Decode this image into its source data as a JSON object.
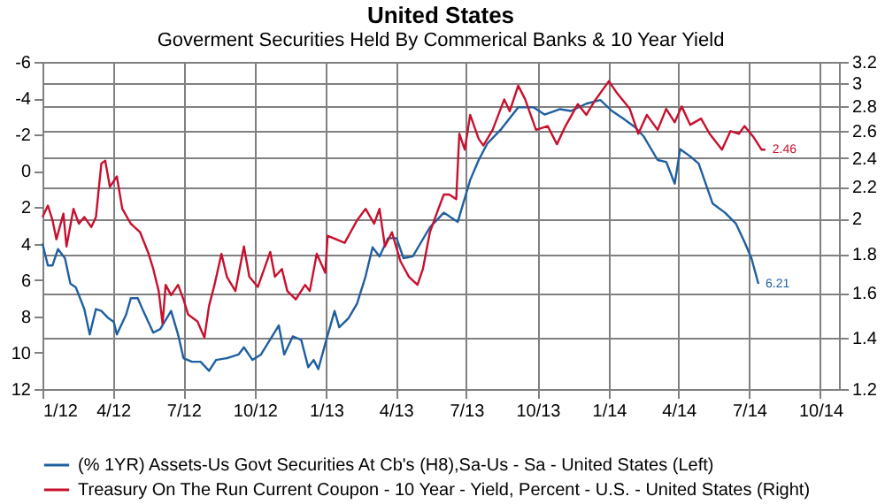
{
  "chart_data": {
    "type": "line",
    "title": "United States",
    "subtitle": "Goverment Securities Held By Commerical Banks & 10 Year Yield",
    "xlim": [
      "2012-01-01",
      "2014-10-25"
    ],
    "xticks": [
      {
        "value": "2012-01-01",
        "label": "1/12"
      },
      {
        "value": "2012-04-01",
        "label": "4/12"
      },
      {
        "value": "2012-07-01",
        "label": "7/12"
      },
      {
        "value": "2012-10-01",
        "label": "10/12"
      },
      {
        "value": "2013-01-01",
        "label": "1/13"
      },
      {
        "value": "2013-04-01",
        "label": "4/13"
      },
      {
        "value": "2013-07-01",
        "label": "7/13"
      },
      {
        "value": "2013-10-01",
        "label": "10/13"
      },
      {
        "value": "2014-01-01",
        "label": "1/14"
      },
      {
        "value": "2014-04-01",
        "label": "4/14"
      },
      {
        "value": "2014-07-01",
        "label": "7/14"
      },
      {
        "value": "2014-10-01",
        "label": "10/14"
      }
    ],
    "ylim": [
      12,
      -6
    ],
    "yticks": [
      -6,
      -4,
      -2,
      0,
      2,
      4,
      6,
      8,
      10,
      12
    ],
    "y2lim": [
      1.2,
      3.2
    ],
    "y2ticks": [
      1.2,
      1.4,
      1.6,
      1.8,
      2,
      2.2,
      2.4,
      2.6,
      2.8,
      3,
      3.2
    ],
    "log": "y2",
    "grid": true,
    "legend": "bottom",
    "line_style": "solid",
    "series": [
      {
        "name": "(% 1YR) Assets-Us Govt Securities At Cb's (H8),Sa-Us - Sa - United States  (Left)",
        "color": "#1f5fa0",
        "x": [
          "2012-01-01",
          "2012-01-08",
          "2012-01-14",
          "2012-01-21",
          "2012-01-30",
          "2012-02-06",
          "2012-02-13",
          "2012-02-24",
          "2012-03-02",
          "2012-03-10",
          "2012-03-17",
          "2012-03-26",
          "2012-04-02",
          "2012-04-06",
          "2012-04-18",
          "2012-04-24",
          "2012-05-03",
          "2012-05-10",
          "2012-05-23",
          "2012-06-01",
          "2012-06-15",
          "2012-06-24",
          "2012-07-01",
          "2012-07-12",
          "2012-07-23",
          "2012-08-03",
          "2012-08-12",
          "2012-08-26",
          "2012-09-10",
          "2012-09-17",
          "2012-09-28",
          "2012-10-09",
          "2012-11-01",
          "2012-11-08",
          "2012-11-19",
          "2012-11-30",
          "2012-12-09",
          "2012-12-16",
          "2012-12-22",
          "2012-12-31",
          "2013-01-12",
          "2013-01-18",
          "2013-01-30",
          "2013-02-10",
          "2013-02-21",
          "2013-03-02",
          "2013-03-11",
          "2013-03-22",
          "2013-04-02",
          "2013-04-11",
          "2013-04-23",
          "2013-05-04",
          "2013-05-15",
          "2013-06-02",
          "2013-06-20",
          "2013-07-06",
          "2013-07-17",
          "2013-07-28",
          "2013-08-15",
          "2013-09-06",
          "2013-09-26",
          "2013-10-10",
          "2013-10-30",
          "2013-11-13",
          "2013-12-03",
          "2013-12-21",
          "2014-01-05",
          "2014-01-19",
          "2014-02-04",
          "2014-02-15",
          "2014-03-05",
          "2014-03-16",
          "2014-03-27",
          "2014-04-03",
          "2014-04-16",
          "2014-04-27",
          "2014-05-15",
          "2014-05-31",
          "2014-06-14",
          "2014-06-25",
          "2014-07-04",
          "2014-07-13"
        ],
        "values": [
          4.0,
          5.2,
          5.2,
          4.3,
          4.8,
          6.2,
          6.4,
          7.6,
          9.0,
          7.6,
          7.7,
          8.1,
          8.3,
          9.0,
          7.9,
          7.0,
          7.0,
          7.7,
          8.9,
          8.7,
          7.7,
          9.0,
          10.3,
          10.5,
          10.5,
          11.0,
          10.4,
          10.3,
          10.1,
          9.7,
          10.4,
          10.1,
          8.5,
          10.1,
          9.1,
          9.3,
          10.8,
          10.4,
          10.9,
          9.5,
          7.7,
          8.6,
          8.1,
          7.3,
          5.8,
          4.2,
          4.7,
          3.7,
          3.7,
          4.8,
          4.7,
          3.9,
          3.1,
          2.3,
          2.8,
          0.5,
          -0.6,
          -1.5,
          -2.3,
          -3.5,
          -3.5,
          -3.1,
          -3.4,
          -3.3,
          -3.7,
          -3.9,
          -3.3,
          -2.9,
          -2.4,
          -1.9,
          -0.6,
          -0.5,
          0.7,
          -1.2,
          -0.8,
          -0.4,
          1.8,
          2.3,
          2.9,
          3.9,
          4.8,
          6.21
        ],
        "value_labels": [
          null,
          null,
          null,
          null,
          null,
          null,
          null,
          null,
          null,
          null,
          null,
          null,
          null,
          null,
          null,
          null,
          null,
          null,
          null,
          null,
          null,
          null,
          null,
          null,
          null,
          null,
          null,
          null,
          null,
          null,
          null,
          null,
          null,
          null,
          null,
          null,
          null,
          null,
          null,
          null,
          null,
          null,
          null,
          null,
          null,
          null,
          null,
          null,
          null,
          null,
          null,
          null,
          null,
          null,
          null,
          null,
          null,
          null,
          null,
          null,
          null,
          null,
          null,
          null,
          null,
          null,
          null,
          null,
          null,
          null,
          null,
          null,
          null,
          null,
          null,
          null,
          null,
          null,
          null,
          null,
          null,
          "6.21"
        ]
      },
      {
        "name": "Treasury On The Run Current Coupon - 10 Year - Yield, Percent - U.S. - United States  (Right)",
        "color": "#c8102e",
        "axis": "y2",
        "x": [
          "2012-01-01",
          "2012-01-08",
          "2012-01-14",
          "2012-01-19",
          "2012-01-28",
          "2012-02-01",
          "2012-02-10",
          "2012-02-17",
          "2012-02-24",
          "2012-03-04",
          "2012-03-10",
          "2012-03-17",
          "2012-03-22",
          "2012-03-28",
          "2012-04-06",
          "2012-04-13",
          "2012-04-24",
          "2012-05-06",
          "2012-05-17",
          "2012-05-23",
          "2012-05-30",
          "2012-06-04",
          "2012-06-08",
          "2012-06-15",
          "2012-06-24",
          "2012-07-01",
          "2012-07-07",
          "2012-07-19",
          "2012-07-28",
          "2012-08-03",
          "2012-08-10",
          "2012-08-19",
          "2012-08-26",
          "2012-09-06",
          "2012-09-17",
          "2012-09-24",
          "2012-10-05",
          "2012-10-21",
          "2012-10-27",
          "2012-11-05",
          "2012-11-12",
          "2012-11-23",
          "2012-12-05",
          "2012-12-11",
          "2012-12-20",
          "2012-12-31",
          "2013-01-03",
          "2013-01-25",
          "2013-02-10",
          "2013-02-21",
          "2013-03-04",
          "2013-03-11",
          "2013-03-18",
          "2013-03-27",
          "2013-04-07",
          "2013-04-18",
          "2013-04-29",
          "2013-05-06",
          "2013-05-15",
          "2013-05-26",
          "2013-06-02",
          "2013-06-09",
          "2013-06-18",
          "2013-06-22",
          "2013-06-29",
          "2013-07-06",
          "2013-07-17",
          "2013-07-23",
          "2013-08-04",
          "2013-08-19",
          "2013-08-26",
          "2013-09-06",
          "2013-09-15",
          "2013-09-29",
          "2013-10-14",
          "2013-10-26",
          "2013-11-06",
          "2013-11-22",
          "2013-12-03",
          "2013-12-14",
          "2014-01-01",
          "2014-01-12",
          "2014-01-28",
          "2014-02-08",
          "2014-02-19",
          "2014-03-05",
          "2014-03-16",
          "2014-03-27",
          "2014-04-05",
          "2014-04-16",
          "2014-04-30",
          "2014-05-11",
          "2014-05-27",
          "2014-06-07",
          "2014-06-18",
          "2014-06-25",
          "2014-07-06",
          "2014-07-17",
          "2014-07-22"
        ],
        "values": [
          2.01,
          2.08,
          1.99,
          1.88,
          2.03,
          1.84,
          2.06,
          1.97,
          2.01,
          1.95,
          2.01,
          2.36,
          2.38,
          2.2,
          2.27,
          2.06,
          1.97,
          1.92,
          1.8,
          1.72,
          1.61,
          1.46,
          1.64,
          1.59,
          1.64,
          1.57,
          1.5,
          1.47,
          1.4,
          1.54,
          1.64,
          1.8,
          1.68,
          1.61,
          1.84,
          1.68,
          1.63,
          1.81,
          1.68,
          1.72,
          1.61,
          1.57,
          1.64,
          1.61,
          1.8,
          1.7,
          1.9,
          1.86,
          1.99,
          2.06,
          1.97,
          2.06,
          1.84,
          1.92,
          1.76,
          1.68,
          1.64,
          1.72,
          1.92,
          2.06,
          2.15,
          2.15,
          2.12,
          2.58,
          2.46,
          2.73,
          2.54,
          2.49,
          2.61,
          2.86,
          2.76,
          2.98,
          2.86,
          2.61,
          2.64,
          2.5,
          2.64,
          2.82,
          2.73,
          2.85,
          3.02,
          2.91,
          2.78,
          2.58,
          2.73,
          2.61,
          2.78,
          2.67,
          2.8,
          2.65,
          2.7,
          2.58,
          2.46,
          2.6,
          2.58,
          2.64,
          2.56,
          2.46,
          2.46
        ],
        "value_labels": [
          null,
          null,
          null,
          null,
          null,
          null,
          null,
          null,
          null,
          null,
          null,
          null,
          null,
          null,
          null,
          null,
          null,
          null,
          null,
          null,
          null,
          null,
          null,
          null,
          null,
          null,
          null,
          null,
          null,
          null,
          null,
          null,
          null,
          null,
          null,
          null,
          null,
          null,
          null,
          null,
          null,
          null,
          null,
          null,
          null,
          null,
          null,
          null,
          null,
          null,
          null,
          null,
          null,
          null,
          null,
          null,
          null,
          null,
          null,
          null,
          null,
          null,
          null,
          null,
          null,
          null,
          null,
          null,
          null,
          null,
          null,
          null,
          null,
          null,
          null,
          null,
          null,
          null,
          null,
          null,
          null,
          null,
          null,
          null,
          null,
          null,
          null,
          null,
          null,
          null,
          null,
          null,
          null,
          null,
          null,
          null,
          null,
          null,
          "2.46"
        ]
      }
    ]
  }
}
